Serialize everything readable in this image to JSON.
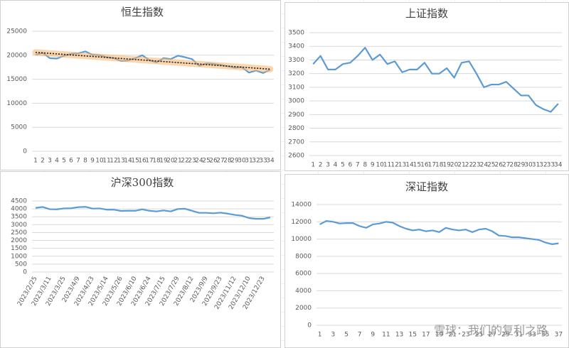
{
  "chart_data": [
    {
      "type": "line",
      "title": "恒生指数",
      "categories": [
        1,
        2,
        3,
        4,
        5,
        6,
        7,
        8,
        9,
        10,
        11,
        12,
        13,
        14,
        15,
        16,
        17,
        18,
        19,
        20,
        21,
        22,
        23,
        24,
        25,
        26,
        27,
        28,
        29,
        30,
        31,
        32,
        33,
        34
      ],
      "series": [
        {
          "color": "#5b9bd5",
          "values": [
            20100,
            20500,
            19400,
            19300,
            19900,
            20300,
            20400,
            20800,
            20100,
            20000,
            19600,
            19400,
            18800,
            18900,
            19400,
            20000,
            19000,
            18500,
            19400,
            19200,
            19900,
            19600,
            19200,
            17800,
            18300,
            18200,
            18000,
            17700,
            17400,
            17500,
            16400,
            16800,
            16300,
            17000
          ]
        }
      ],
      "trendline": {
        "color": "#1a1a1a",
        "glow_color": "#f7b36b",
        "values": [
          20600,
          17100
        ]
      },
      "ylim": [
        0,
        25000
      ],
      "yticks": [
        0,
        5000,
        10000,
        15000,
        20000,
        25000
      ],
      "grid": true
    },
    {
      "type": "line",
      "title": "上证指数",
      "categories": [
        1,
        2,
        3,
        4,
        5,
        6,
        7,
        8,
        9,
        10,
        11,
        12,
        13,
        14,
        15,
        16,
        17,
        18,
        19,
        20,
        21,
        22,
        23,
        24,
        25,
        26,
        27,
        28,
        29,
        30,
        31,
        32,
        33,
        34
      ],
      "series": [
        {
          "color": "#5b9bd5",
          "values": [
            3270,
            3330,
            3230,
            3230,
            3270,
            3280,
            3330,
            3390,
            3300,
            3340,
            3270,
            3290,
            3210,
            3230,
            3230,
            3280,
            3200,
            3200,
            3240,
            3170,
            3280,
            3290,
            3200,
            3100,
            3120,
            3120,
            3140,
            3090,
            3040,
            3040,
            2970,
            2940,
            2920,
            2980
          ]
        }
      ],
      "ylim": [
        2600,
        3500
      ],
      "yticks": [
        2600,
        2700,
        2800,
        2900,
        3000,
        3100,
        3200,
        3300,
        3400,
        3500
      ],
      "grid": true
    },
    {
      "type": "line",
      "title": "沪深300指数",
      "categories": [
        "2023/2/25",
        null,
        "2023/3/11",
        null,
        "2023/3/25",
        null,
        "2023/4/9",
        null,
        "2023/4/23",
        null,
        "2023/5/14",
        null,
        "2023/5/26",
        null,
        "2023/6/10",
        null,
        "2023/6/24",
        null,
        "2023/7/15",
        null,
        "2023/7/29",
        null,
        "2023/8/12",
        null,
        "2023/9/9",
        null,
        "2023/9/23",
        null,
        "2023/11/12",
        null,
        "2023/12/10",
        null,
        "2023/12/23",
        null
      ],
      "series": [
        {
          "color": "#5b9bd5",
          "values": [
            4060,
            4120,
            3980,
            3970,
            4030,
            4040,
            4110,
            4130,
            4020,
            4030,
            3950,
            3950,
            3870,
            3880,
            3880,
            3970,
            3880,
            3840,
            3900,
            3840,
            3990,
            4010,
            3880,
            3750,
            3750,
            3720,
            3760,
            3700,
            3620,
            3570,
            3420,
            3370,
            3370,
            3460
          ]
        }
      ],
      "ylim": [
        0,
        4500
      ],
      "yticks": [
        0,
        500,
        1000,
        1500,
        2000,
        2500,
        3000,
        3500,
        4000,
        4500
      ],
      "grid": true,
      "rotate_labels": true
    },
    {
      "type": "line",
      "title": "深证指数",
      "categories": [
        1,
        null,
        3,
        null,
        5,
        null,
        7,
        null,
        9,
        null,
        11,
        null,
        13,
        null,
        15,
        null,
        17,
        null,
        19,
        null,
        21,
        null,
        23,
        null,
        25,
        null,
        27,
        null,
        29,
        null,
        31,
        null,
        33,
        null,
        35,
        null,
        37
      ],
      "series": [
        {
          "color": "#5b9bd5",
          "values": [
            11700,
            12100,
            12000,
            11800,
            11850,
            11850,
            11500,
            11300,
            11700,
            11800,
            12000,
            11900,
            11500,
            11200,
            11000,
            11100,
            10900,
            11000,
            10800,
            11300,
            11100,
            11000,
            11100,
            10800,
            11100,
            11200,
            10900,
            10400,
            10350,
            10200,
            10200,
            10100,
            10000,
            9900,
            9600,
            9400,
            9500
          ]
        }
      ],
      "ylim": [
        0,
        14000
      ],
      "yticks": [
        0,
        2000,
        4000,
        6000,
        8000,
        10000,
        12000,
        14000
      ],
      "grid": true
    }
  ],
  "watermark": "雪球：我们的复利之路"
}
